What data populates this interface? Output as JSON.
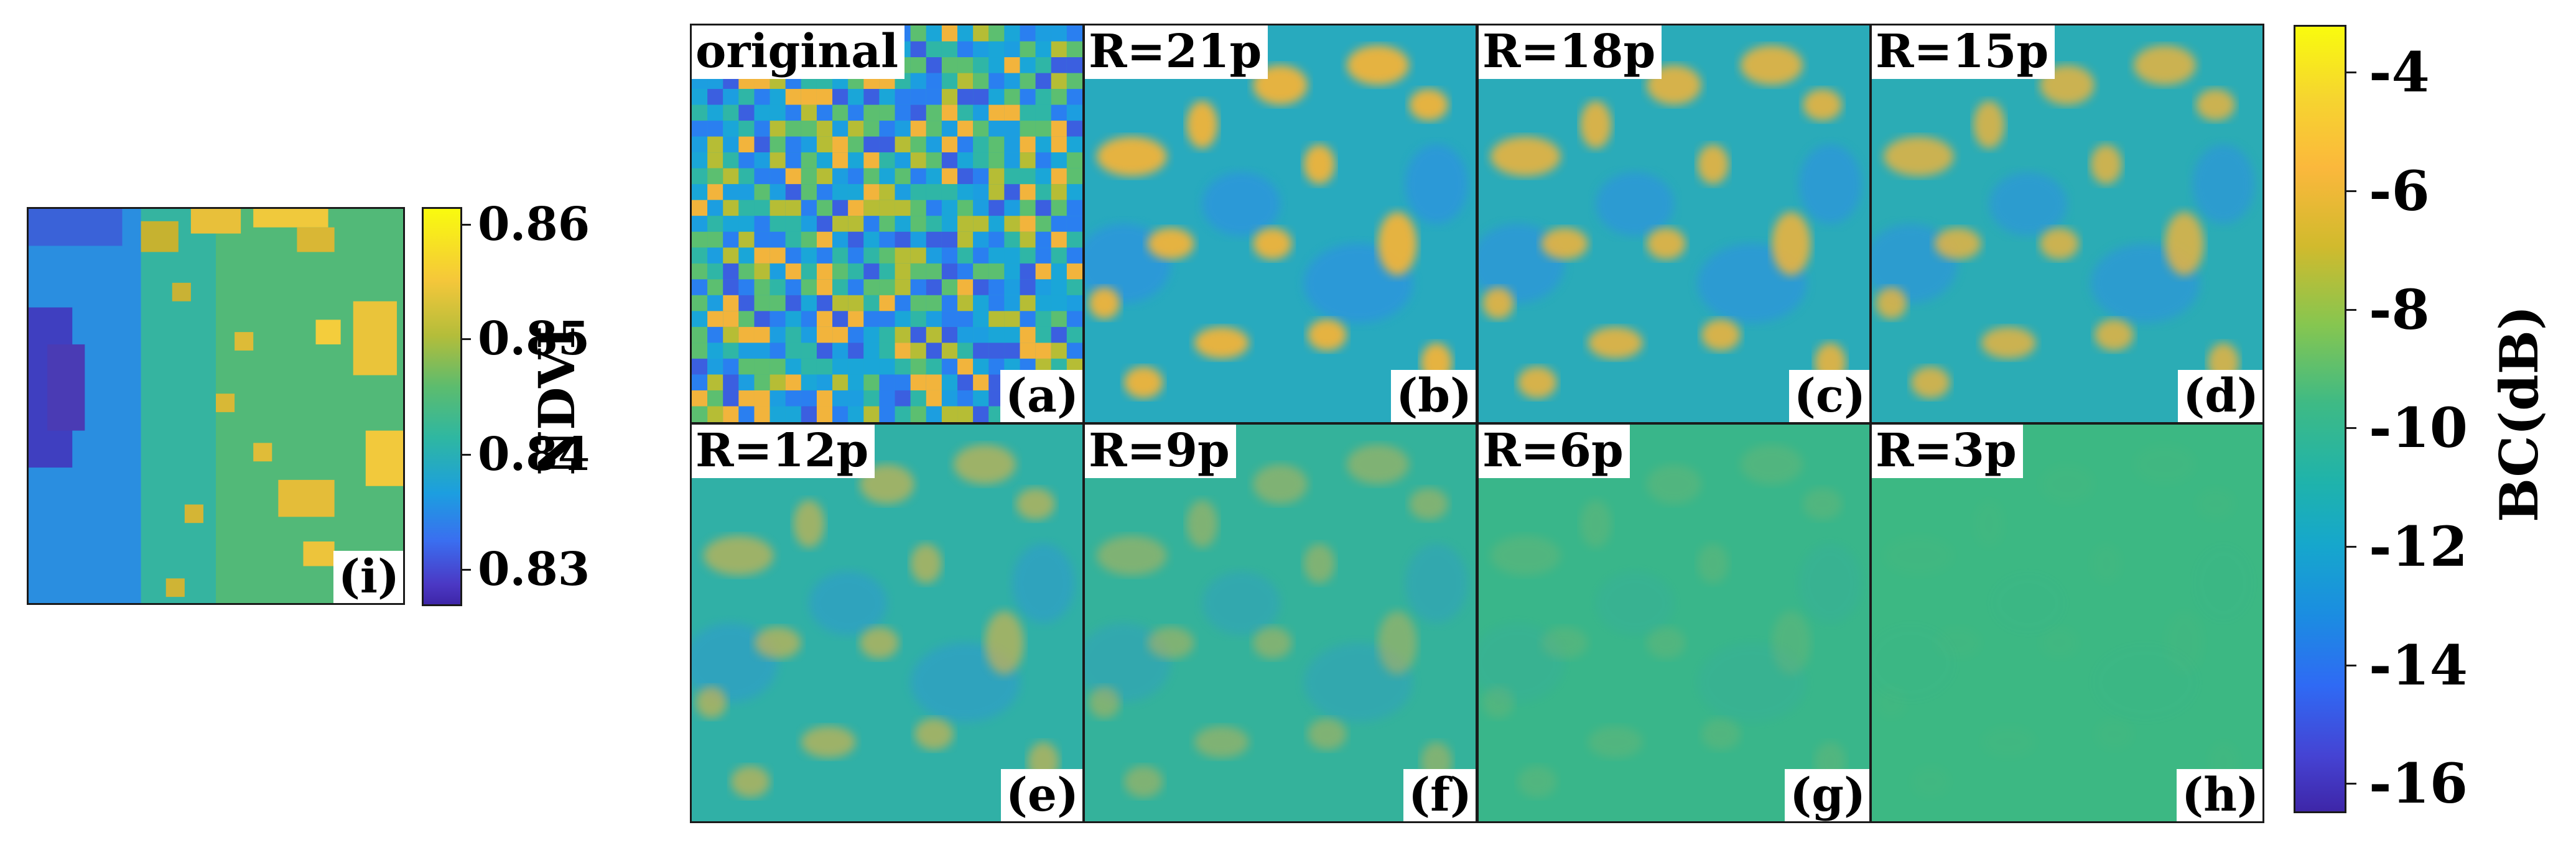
{
  "ndvi_panel": {
    "letter": "(i)",
    "colorbar": {
      "label": "NDVI",
      "ticks": [
        "0.86",
        "0.85",
        "0.84",
        "0.83"
      ],
      "range": [
        0.828,
        0.861
      ]
    }
  },
  "bc_panels": [
    {
      "title": "original",
      "letter": "(a)",
      "radius_px": 0
    },
    {
      "title": "R=21p",
      "letter": "(b)",
      "radius_px": 21
    },
    {
      "title": "R=18p",
      "letter": "(c)",
      "radius_px": 18
    },
    {
      "title": "R=15p",
      "letter": "(d)",
      "radius_px": 15
    },
    {
      "title": "R=12p",
      "letter": "(e)",
      "radius_px": 12
    },
    {
      "title": "R=9p",
      "letter": "(f)",
      "radius_px": 9
    },
    {
      "title": "R=6p",
      "letter": "(g)",
      "radius_px": 6
    },
    {
      "title": "R=3p",
      "letter": "(h)",
      "radius_px": 3
    }
  ],
  "bc_colorbar": {
    "label": "BC(dB)",
    "ticks": [
      "-4",
      "-6",
      "-8",
      "-10",
      "-12",
      "-14",
      "-16"
    ],
    "range": [
      -16.5,
      -3.2
    ]
  },
  "colormap": "parula"
}
